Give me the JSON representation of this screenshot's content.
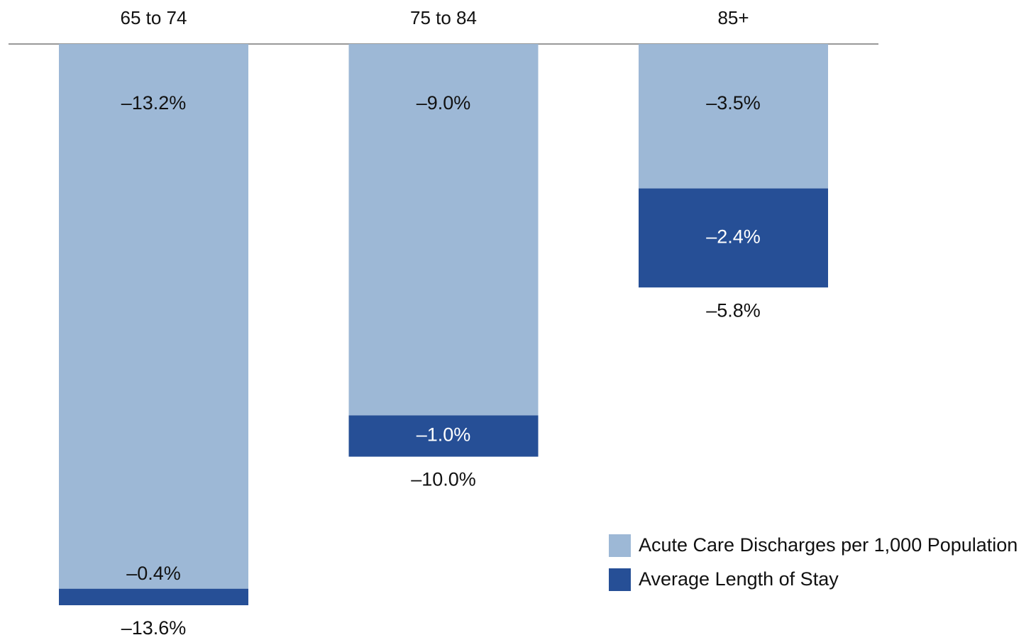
{
  "chart_data": {
    "type": "stacked_bar",
    "categories": [
      "65 to 74",
      "75 to 84",
      "85+"
    ],
    "series": [
      {
        "name": "Acute Care Discharges per 1,000 Population",
        "color": "#9db8d6",
        "label_color": "#111111",
        "values": [
          -13.2,
          -9.0,
          -3.5
        ],
        "value_labels": [
          "–13.2%",
          "–9.0%",
          "–3.5%"
        ]
      },
      {
        "name": "Average Length of Stay",
        "color": "#264f96",
        "label_color": "#ffffff",
        "values": [
          -0.4,
          -1.0,
          -2.4
        ],
        "value_labels": [
          "–0.4%",
          "–1.0%",
          "–2.4%"
        ]
      }
    ],
    "totals": [
      -13.6,
      -10.0,
      -5.8
    ],
    "total_labels": [
      "–13.6%",
      "–10.0%",
      "–5.8%"
    ],
    "legend": "lower right"
  }
}
